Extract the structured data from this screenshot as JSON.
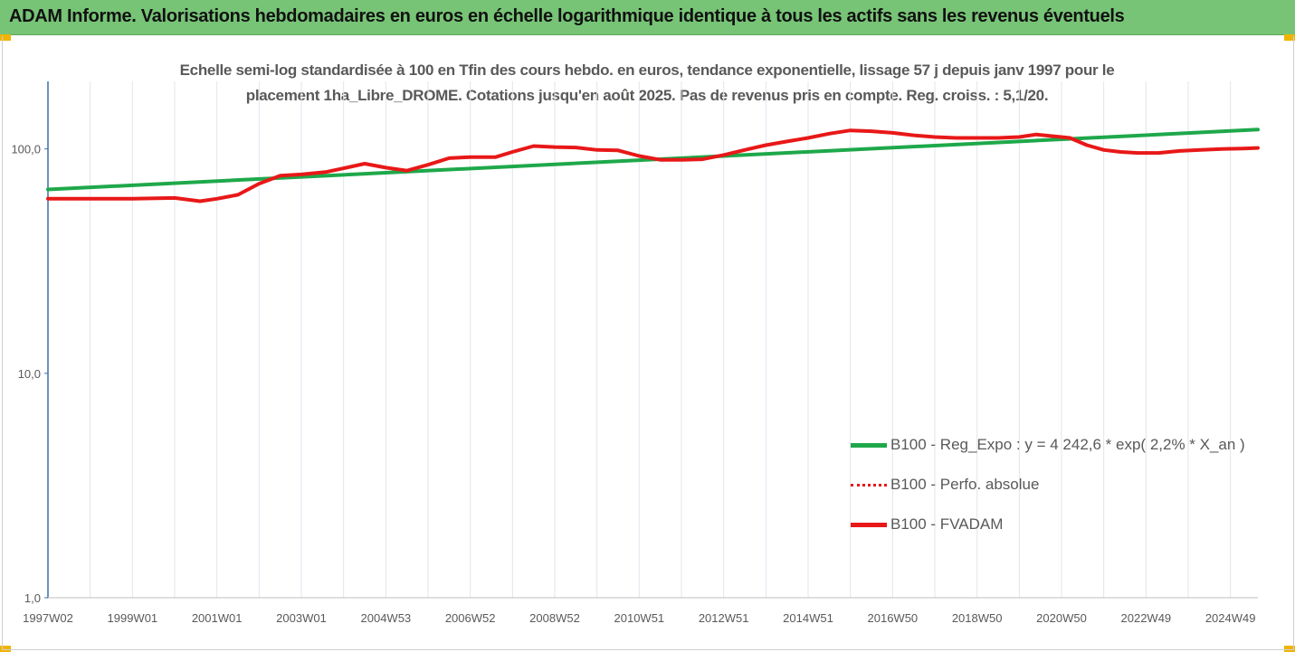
{
  "header": {
    "title": "ADAM Informe. Valorisations hebdomadaires en euros en échelle logarithmique identique à tous les actifs sans les revenus éventuels",
    "background": "#77c476"
  },
  "chart_data": {
    "type": "line",
    "title_lines": [
      "Echelle semi-log standardisée à 100 en Tfin des cours hebdo. en euros, tendance exponentielle, lissage 57 j depuis janv 1997 pour le",
      "placement 1ha_Libre_DROME. Cotations jusqu'en août 2025. Pas de revenus pris en compte. Reg. croiss. : 5,1/20."
    ],
    "y_scale": "log",
    "ylim": [
      1,
      200
    ],
    "y_ticks": [
      {
        "value": 1,
        "label": "1,0"
      },
      {
        "value": 10,
        "label": "10,0"
      },
      {
        "value": 100,
        "label": "100,0"
      }
    ],
    "x_range": [
      1997.0,
      2025.65
    ],
    "x_ticks": [
      {
        "x": 1997.0,
        "label": "1997W02"
      },
      {
        "x": 1999.0,
        "label": "1999W01"
      },
      {
        "x": 2001.0,
        "label": "2001W01"
      },
      {
        "x": 2003.0,
        "label": "2003W01"
      },
      {
        "x": 2005.0,
        "label": "2004W53"
      },
      {
        "x": 2007.0,
        "label": "2006W52"
      },
      {
        "x": 2009.0,
        "label": "2008W52"
      },
      {
        "x": 2011.0,
        "label": "2010W51"
      },
      {
        "x": 2013.0,
        "label": "2012W51"
      },
      {
        "x": 2015.0,
        "label": "2014W51"
      },
      {
        "x": 2017.0,
        "label": "2016W50"
      },
      {
        "x": 2019.0,
        "label": "2018W50"
      },
      {
        "x": 2021.0,
        "label": "2020W50"
      },
      {
        "x": 2023.0,
        "label": "2022W49"
      },
      {
        "x": 2025.0,
        "label": "2024W49"
      }
    ],
    "grid": "vertical",
    "legend_position": "bottom-right",
    "series": [
      {
        "name": "B100 - Reg_Expo : y = 4 242,6 * exp( 2,2% *  X_an )",
        "color": "#1ea84a",
        "style": "solid",
        "x": [
          1997.0,
          2025.65
        ],
        "y": [
          66.0,
          122.0
        ]
      },
      {
        "name": "B100 - Perfo. absolue",
        "color": "#e81818",
        "style": "dotted",
        "x": [],
        "y": []
      },
      {
        "name": "B100 - FVADAM",
        "color": "#e81818",
        "style": "solid",
        "x": [
          1997.0,
          1998.0,
          1999.0,
          2000.0,
          2000.6,
          2001.0,
          2001.5,
          2002.0,
          2002.5,
          2003.0,
          2003.6,
          2004.0,
          2004.5,
          2005.0,
          2005.5,
          2006.0,
          2006.5,
          2007.0,
          2007.6,
          2008.0,
          2008.5,
          2009.0,
          2009.5,
          2010.0,
          2010.5,
          2011.0,
          2011.5,
          2012.0,
          2012.5,
          2013.0,
          2013.5,
          2014.0,
          2014.5,
          2015.0,
          2015.5,
          2016.0,
          2016.5,
          2017.0,
          2017.5,
          2018.0,
          2018.5,
          2019.0,
          2019.5,
          2020.0,
          2020.4,
          2020.8,
          2021.2,
          2021.6,
          2022.0,
          2022.4,
          2022.8,
          2023.3,
          2023.8,
          2024.3,
          2024.8,
          2025.3,
          2025.65
        ],
        "y": [
          60.0,
          60.0,
          60.0,
          60.5,
          58.5,
          60.0,
          62.5,
          70.0,
          76.0,
          77.0,
          79.0,
          82.0,
          86.0,
          82.5,
          80.0,
          85.0,
          91.0,
          92.0,
          92.0,
          97.0,
          103.0,
          102.0,
          101.5,
          99.0,
          98.5,
          93.0,
          89.5,
          89.5,
          90.0,
          94.0,
          99.0,
          104.0,
          108.0,
          112.0,
          117.0,
          121.0,
          120.0,
          118.0,
          115.0,
          113.0,
          112.0,
          112.0,
          112.0,
          113.0,
          116.0,
          114.0,
          112.0,
          104.0,
          99.0,
          97.0,
          96.0,
          96.0,
          98.0,
          99.0,
          100.0,
          100.5,
          101.0
        ]
      }
    ]
  }
}
